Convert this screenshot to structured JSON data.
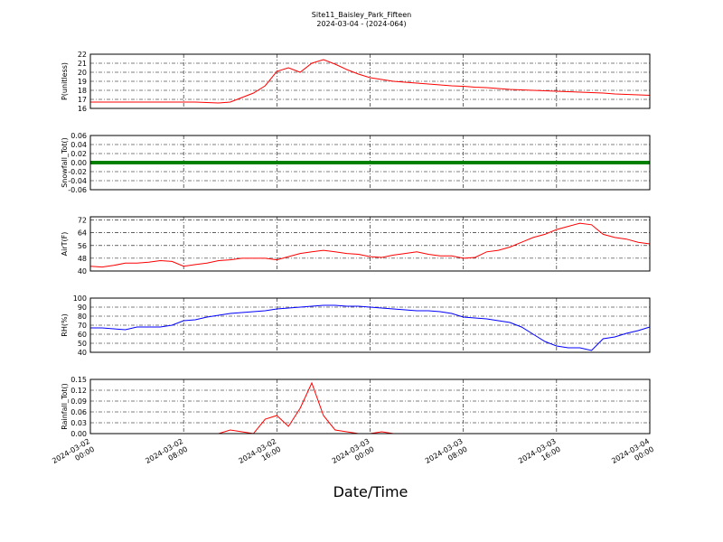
{
  "title": "Site11_Baisley_Park_Fifteen",
  "subtitle": "2024-03-04 - (2024-064)",
  "xlabel": "Date/Time",
  "xlim": [
    "2024-03-02 00:00",
    "2024-03-04 00:00"
  ],
  "xticks": [
    "2024-03-02 00:00",
    "2024-03-02 08:00",
    "2024-03-02 16:00",
    "2024-03-03 00:00",
    "2024-03-03 08:00",
    "2024-03-03 16:00",
    "2024-03-04 00:00"
  ],
  "x": [
    "2024-03-02 00:00",
    "2024-03-02 01:00",
    "2024-03-02 02:00",
    "2024-03-02 03:00",
    "2024-03-02 04:00",
    "2024-03-02 05:00",
    "2024-03-02 06:00",
    "2024-03-02 07:00",
    "2024-03-02 08:00",
    "2024-03-02 09:00",
    "2024-03-02 10:00",
    "2024-03-02 11:00",
    "2024-03-02 12:00",
    "2024-03-02 13:00",
    "2024-03-02 14:00",
    "2024-03-02 15:00",
    "2024-03-02 16:00",
    "2024-03-02 17:00",
    "2024-03-02 18:00",
    "2024-03-02 19:00",
    "2024-03-02 20:00",
    "2024-03-02 21:00",
    "2024-03-02 22:00",
    "2024-03-02 23:00",
    "2024-03-03 00:00",
    "2024-03-03 01:00",
    "2024-03-03 02:00",
    "2024-03-03 03:00",
    "2024-03-03 04:00",
    "2024-03-03 05:00",
    "2024-03-03 06:00",
    "2024-03-03 07:00",
    "2024-03-03 08:00",
    "2024-03-03 09:00",
    "2024-03-03 10:00",
    "2024-03-03 11:00",
    "2024-03-03 12:00",
    "2024-03-03 13:00",
    "2024-03-03 14:00",
    "2024-03-03 15:00",
    "2024-03-03 16:00",
    "2024-03-03 17:00",
    "2024-03-03 18:00",
    "2024-03-03 19:00",
    "2024-03-03 20:00",
    "2024-03-03 21:00",
    "2024-03-03 22:00",
    "2024-03-03 23:00",
    "2024-03-04 00:00"
  ],
  "chart_data": [
    {
      "type": "line",
      "ylabel": "P(unitless)",
      "color": "#ff0000",
      "grid": true,
      "ylim": [
        16,
        22
      ],
      "yticks": [
        16,
        17,
        18,
        19,
        20,
        21,
        22
      ],
      "values": [
        16.7,
        16.7,
        16.7,
        16.7,
        16.7,
        16.7,
        16.7,
        16.7,
        16.7,
        16.7,
        16.65,
        16.6,
        16.7,
        17.2,
        17.7,
        18.5,
        20.1,
        20.5,
        20.0,
        21.0,
        21.4,
        20.9,
        20.3,
        19.8,
        19.4,
        19.2,
        19.0,
        18.9,
        18.8,
        18.7,
        18.6,
        18.5,
        18.45,
        18.35,
        18.3,
        18.2,
        18.1,
        18.05,
        18.0,
        17.95,
        17.9,
        17.85,
        17.8,
        17.75,
        17.7,
        17.6,
        17.55,
        17.5,
        17.45
      ]
    },
    {
      "type": "line",
      "ylabel": "Snowfall_Tot()",
      "color": "#008000",
      "grid": true,
      "ylim": [
        -0.06,
        0.06
      ],
      "yticks": [
        -0.06,
        -0.04,
        -0.02,
        {
          "value": 0,
          "label": "0.00"
        },
        0.02,
        0.04,
        0.06
      ],
      "values": [
        0,
        0,
        0,
        0,
        0,
        0,
        0,
        0,
        0,
        0,
        0,
        0,
        0,
        0,
        0,
        0,
        0,
        0,
        0,
        0,
        0,
        0,
        0,
        0,
        0,
        0,
        0,
        0,
        0,
        0,
        0,
        0,
        0,
        0,
        0,
        0,
        0,
        0,
        0,
        0,
        0,
        0,
        0,
        0,
        0,
        0,
        0,
        0,
        0
      ]
    },
    {
      "type": "line",
      "ylabel": "AirT(F)",
      "color": "#ff0000",
      "grid": true,
      "ylim": [
        40,
        74
      ],
      "yticks": [
        40,
        48,
        56,
        64,
        72
      ],
      "values": [
        43,
        42.5,
        43.5,
        45,
        45,
        45.5,
        46.5,
        46,
        43,
        44,
        45,
        46.5,
        47,
        48,
        48,
        48,
        47,
        49,
        51,
        52,
        53,
        52,
        51,
        50.5,
        49,
        48.5,
        50,
        51,
        52,
        50.5,
        49.5,
        49.5,
        48,
        48.5,
        52,
        53,
        55,
        58,
        61,
        63,
        66,
        68,
        70,
        69,
        63,
        61,
        60,
        58,
        57
      ]
    },
    {
      "type": "line",
      "ylabel": "RH(%)",
      "color": "#0000ff",
      "grid": true,
      "ylim": [
        40,
        100
      ],
      "yticks": [
        40,
        50,
        60,
        70,
        80,
        90,
        100
      ],
      "values": [
        67,
        67,
        66,
        65,
        68,
        68,
        68,
        70,
        75,
        76,
        79,
        81,
        83,
        84,
        85,
        86,
        88,
        89,
        90,
        91,
        92,
        92,
        91,
        91,
        90,
        89,
        88,
        87,
        86,
        86,
        85,
        83,
        79,
        78,
        77,
        75,
        73,
        68,
        60,
        52,
        47,
        45,
        45,
        42,
        55,
        57,
        61,
        64,
        68
      ]
    },
    {
      "type": "line",
      "ylabel": "Rainfall_Tot()",
      "color": "#ff0000",
      "grid": true,
      "ylim": [
        0,
        0.15
      ],
      "yticks": [
        {
          "value": 0,
          "label": "0.00"
        },
        0.03,
        0.06,
        0.09,
        0.12,
        0.15
      ],
      "values": [
        0,
        0,
        0,
        0,
        0,
        0,
        0,
        0,
        0,
        0,
        0,
        0,
        0.01,
        0.005,
        0,
        0.04,
        0.05,
        0.02,
        0.07,
        0.14,
        0.05,
        0.01,
        0.005,
        0,
        0,
        0.005,
        0,
        0,
        0,
        0,
        0,
        0,
        0,
        0,
        0,
        0,
        0,
        0,
        0,
        0,
        0,
        0,
        0,
        0,
        0,
        0,
        0,
        0,
        0
      ]
    }
  ]
}
